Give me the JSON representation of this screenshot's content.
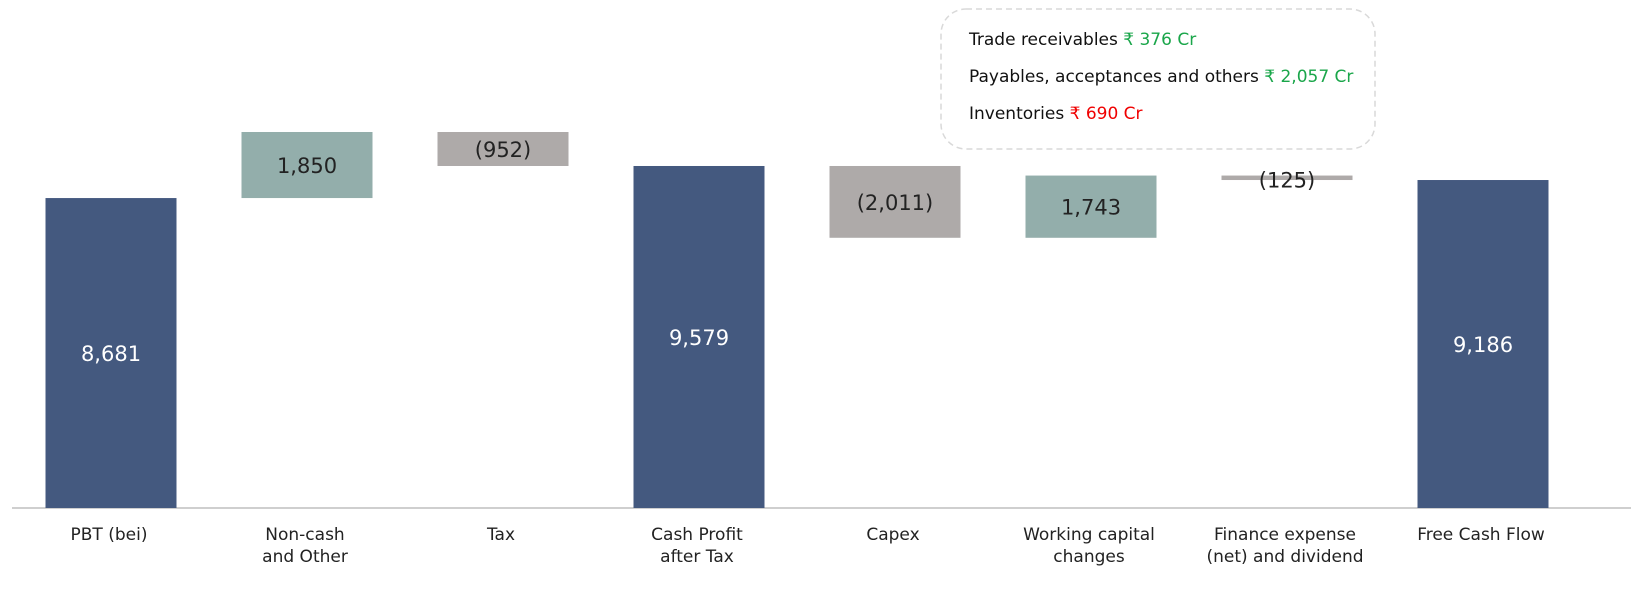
{
  "chart_data": {
    "type": "waterfall",
    "categories": [
      "PBT (bei)",
      "Non-cash\nand Other",
      "Tax",
      "Cash Profit\nafter Tax",
      "Capex",
      "Working capital\nchanges",
      "Finance expense\n(net) and dividend",
      "Free Cash Flow"
    ],
    "values": [
      8681,
      1850,
      -952,
      9579,
      -2011,
      1743,
      -125,
      9186
    ],
    "value_labels": [
      "8,681",
      "1,850",
      "(952)",
      "9,579",
      "(2,011)",
      "1,743",
      "(125)",
      "9,186"
    ],
    "kinds": [
      "total",
      "step",
      "step",
      "total",
      "step",
      "step",
      "step",
      "total"
    ],
    "colors": {
      "total": "#44597f",
      "increase": "#93aeab",
      "decrease": "#aeaaa9"
    },
    "annotations": [
      {
        "label": "Trade receivables",
        "value": "₹ 376 Cr",
        "color": "#1aa64a"
      },
      {
        "label": "Payables, acceptances and others",
        "value": "₹ 2,057 Cr",
        "color": "#1aa64a"
      },
      {
        "label": "Inventories",
        "value": "₹ 690 Cr",
        "color": "#f00000"
      }
    ]
  }
}
